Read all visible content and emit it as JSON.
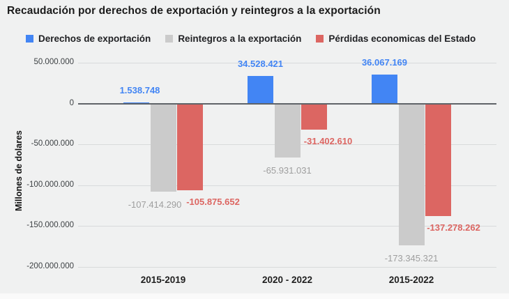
{
  "title": "Recaudación por derechos de exportación y reintegros a la exportación",
  "legend": [
    {
      "label": "Derechos de exportación",
      "color": "#4285f4"
    },
    {
      "label": "Reintegros a la exportación",
      "color": "#cbcbcb"
    },
    {
      "label": "Pérdidas economicas del Estado",
      "color": "#dc6662"
    }
  ],
  "chart_data": {
    "type": "bar",
    "title": "Recaudación por derechos de exportación y reintegros a la exportación",
    "xlabel": "",
    "ylabel": "Millones de dolares",
    "categories": [
      "2015-2019",
      "2020 - 2022",
      "2015-2022"
    ],
    "series": [
      {
        "name": "Derechos de exportación",
        "color": "#4285f4",
        "label_color": "#4285f4",
        "values": [
          1538748,
          34528421,
          36067169
        ],
        "labels": [
          "1.538.748",
          "34.528.421",
          "36.067.169"
        ]
      },
      {
        "name": "Reintegros a la exportación",
        "color": "#cbcbcb",
        "label_color": "#9e9e9e",
        "values": [
          -107414290,
          -65931031,
          -173345321
        ],
        "labels": [
          "-107.414.290",
          "-65.931.031",
          "-173.345.321"
        ]
      },
      {
        "name": "Pérdidas economicas del Estado",
        "color": "#dc6662",
        "label_color": "#dc6662",
        "values": [
          -105875652,
          -31402610,
          -137278262
        ],
        "labels": [
          "-105.875.652",
          "-31.402.610",
          "-137.278.262"
        ]
      }
    ],
    "ylim": [
      -200000000,
      50000000
    ],
    "y_ticks": [
      50000000,
      0,
      -50000000,
      -100000000,
      -150000000,
      -200000000
    ],
    "y_tick_labels": [
      "50.000.000",
      "0",
      "-50.000.000",
      "-100.000.000",
      "-150.000.000",
      "-200.000.000"
    ],
    "grid": true,
    "legend_position": "top",
    "zero_axis_color": "#5f6368",
    "grid_color": "#d8dadb"
  }
}
